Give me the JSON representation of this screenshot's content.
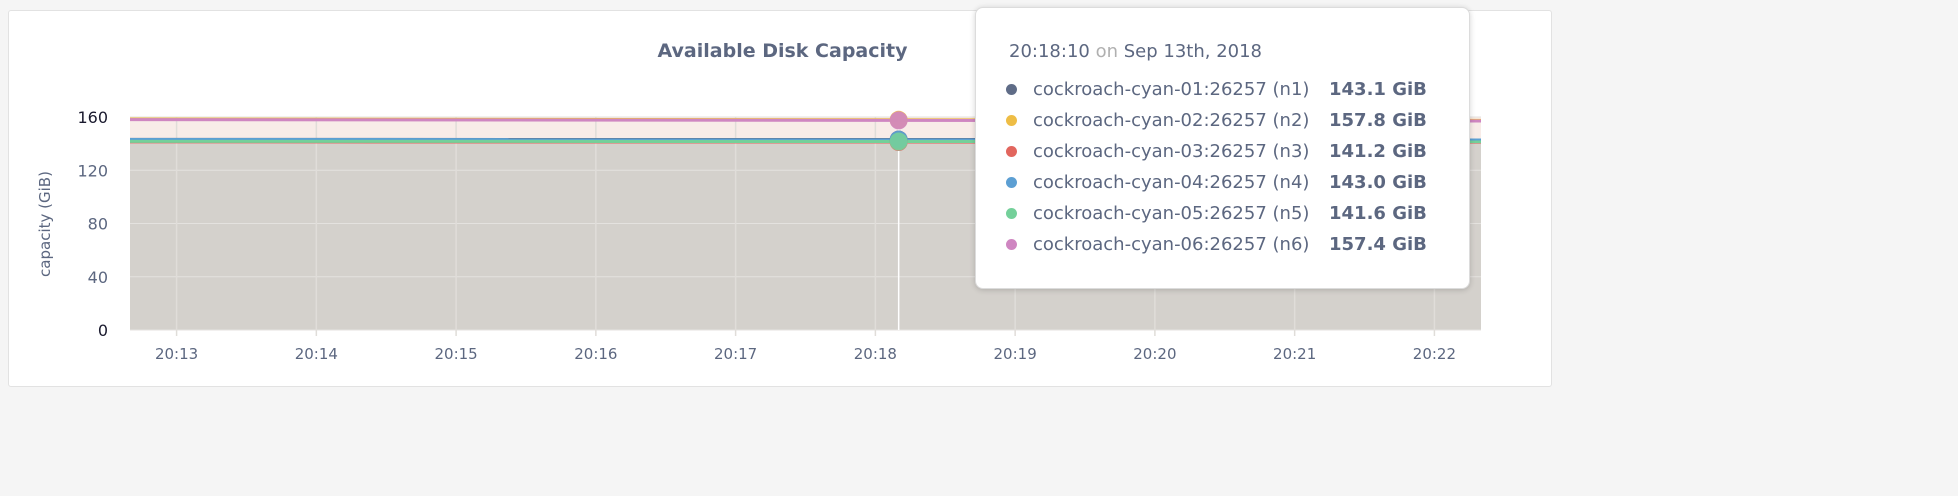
{
  "chart_data": {
    "type": "area",
    "title": "Available Disk Capacity",
    "ylabel": "capacity (GiB)",
    "xlabel": "",
    "ylim": [
      0,
      160
    ],
    "xlim": [
      "20:12:40",
      "20:22:20"
    ],
    "yticks": [
      "0",
      "40",
      "80",
      "120",
      "160"
    ],
    "xticks": [
      "20:13",
      "20:14",
      "20:15",
      "20:16",
      "20:17",
      "20:18",
      "20:19",
      "20:20",
      "20:21",
      "20:22"
    ],
    "grid": true,
    "series": [
      {
        "name": "cockroach-cyan-01:26257 (n1)",
        "color": "#5f6c87",
        "x": [
          "20:12:40",
          "20:22:20"
        ],
        "values": [
          143.2,
          143.0
        ],
        "hover_value": "143.1 GiB"
      },
      {
        "name": "cockroach-cyan-02:26257 (n2)",
        "color": "#eebd45",
        "x": [
          "20:12:40",
          "20:22:20"
        ],
        "values": [
          158.5,
          157.5
        ],
        "hover_value": "157.8 GiB"
      },
      {
        "name": "cockroach-cyan-03:26257 (n3)",
        "color": "#e2665e",
        "x": [
          "20:12:40",
          "20:22:20"
        ],
        "values": [
          141.3,
          141.1
        ],
        "hover_value": "141.2 GiB"
      },
      {
        "name": "cockroach-cyan-04:26257 (n4)",
        "color": "#5c9fd3",
        "x": [
          "20:12:40",
          "20:22:20"
        ],
        "values": [
          143.1,
          142.9
        ],
        "hover_value": "143.0 GiB"
      },
      {
        "name": "cockroach-cyan-05:26257 (n5)",
        "color": "#74d09a",
        "x": [
          "20:12:40",
          "20:22:20"
        ],
        "values": [
          141.7,
          141.5
        ],
        "hover_value": "141.6 GiB"
      },
      {
        "name": "cockroach-cyan-06:26257 (n6)",
        "color": "#cf86c1",
        "x": [
          "20:12:40",
          "20:22:20"
        ],
        "values": [
          158.0,
          157.0
        ],
        "hover_value": "157.4 GiB"
      }
    ],
    "tooltip": {
      "time": "20:18:10",
      "on": "on",
      "date": "Sep 13th, 2018"
    }
  }
}
